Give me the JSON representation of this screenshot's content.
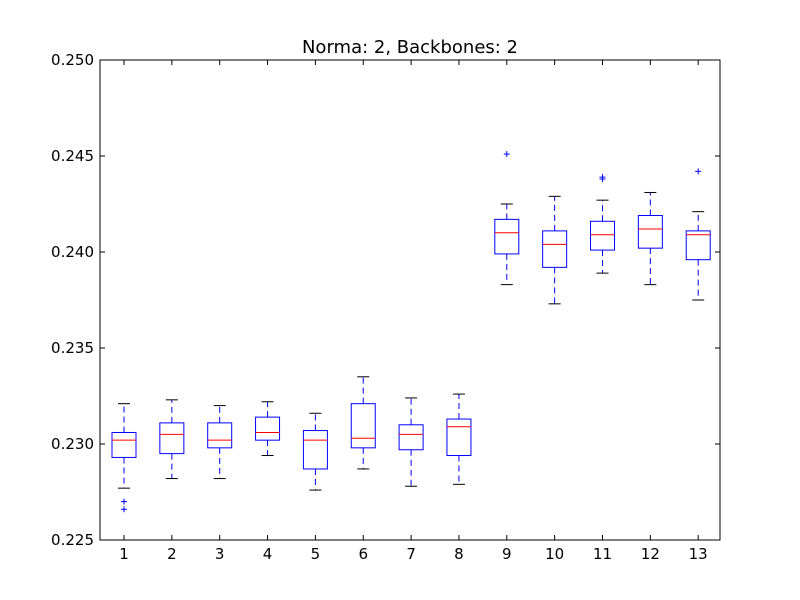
{
  "chart_data": {
    "type": "box",
    "title": "Norma: 2, Backbones: 2",
    "xlabel": "",
    "ylabel": "",
    "categories": [
      "1",
      "2",
      "3",
      "4",
      "5",
      "6",
      "7",
      "8",
      "9",
      "10",
      "11",
      "12",
      "13"
    ],
    "ylim": [
      0.225,
      0.25
    ],
    "y_ticks": [
      0.225,
      0.23,
      0.235,
      0.24,
      0.245,
      0.25
    ],
    "y_tick_labels": [
      "0.225",
      "0.230",
      "0.235",
      "0.240",
      "0.245",
      "0.250"
    ],
    "grid": false,
    "boxes": [
      {
        "category": "1",
        "whisker_low": 0.2277,
        "q1": 0.2293,
        "median": 0.2302,
        "q3": 0.2306,
        "whisker_high": 0.2321,
        "outliers": [
          0.227,
          0.2266
        ]
      },
      {
        "category": "2",
        "whisker_low": 0.2282,
        "q1": 0.2295,
        "median": 0.2305,
        "q3": 0.2311,
        "whisker_high": 0.2323,
        "outliers": []
      },
      {
        "category": "3",
        "whisker_low": 0.2282,
        "q1": 0.2298,
        "median": 0.2302,
        "q3": 0.2311,
        "whisker_high": 0.232,
        "outliers": []
      },
      {
        "category": "4",
        "whisker_low": 0.2294,
        "q1": 0.2302,
        "median": 0.2306,
        "q3": 0.2314,
        "whisker_high": 0.2322,
        "outliers": []
      },
      {
        "category": "5",
        "whisker_low": 0.2276,
        "q1": 0.2287,
        "median": 0.2302,
        "q3": 0.2307,
        "whisker_high": 0.2316,
        "outliers": []
      },
      {
        "category": "6",
        "whisker_low": 0.2287,
        "q1": 0.2298,
        "median": 0.2303,
        "q3": 0.2321,
        "whisker_high": 0.2335,
        "outliers": []
      },
      {
        "category": "7",
        "whisker_low": 0.2278,
        "q1": 0.2297,
        "median": 0.2305,
        "q3": 0.231,
        "whisker_high": 0.2324,
        "outliers": []
      },
      {
        "category": "8",
        "whisker_low": 0.2279,
        "q1": 0.2294,
        "median": 0.2309,
        "q3": 0.2313,
        "whisker_high": 0.2326,
        "outliers": []
      },
      {
        "category": "9",
        "whisker_low": 0.2383,
        "q1": 0.2399,
        "median": 0.241,
        "q3": 0.2417,
        "whisker_high": 0.2425,
        "outliers": [
          0.2451
        ]
      },
      {
        "category": "10",
        "whisker_low": 0.2373,
        "q1": 0.2392,
        "median": 0.2404,
        "q3": 0.2411,
        "whisker_high": 0.2429,
        "outliers": []
      },
      {
        "category": "11",
        "whisker_low": 0.2389,
        "q1": 0.2401,
        "median": 0.2409,
        "q3": 0.2416,
        "whisker_high": 0.2427,
        "outliers": [
          0.2438,
          0.2439
        ]
      },
      {
        "category": "12",
        "whisker_low": 0.2383,
        "q1": 0.2402,
        "median": 0.2412,
        "q3": 0.2419,
        "whisker_high": 0.2431,
        "outliers": []
      },
      {
        "category": "13",
        "whisker_low": 0.2375,
        "q1": 0.2396,
        "median": 0.2409,
        "q3": 0.2411,
        "whisker_high": 0.2421,
        "outliers": [
          0.2442
        ]
      }
    ],
    "colors": {
      "box": "#0000ff",
      "median": "#ff0000",
      "whisker": "#0000ff",
      "cap": "#000000",
      "outlier": "#0000ff",
      "axes": "#000000"
    }
  }
}
